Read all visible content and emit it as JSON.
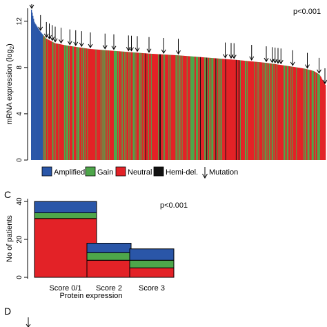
{
  "colors": {
    "amplified": "#2a56a8",
    "gain": "#4ea64a",
    "neutral": "#e32227",
    "hemi_del": "#111111"
  },
  "panels": {
    "c_label": "C",
    "d_label": "D"
  },
  "chart_data": [
    {
      "type": "bar",
      "title": "",
      "ylabel": "mRNA expression (log",
      "ylabel_sub": "2",
      "ylabel_end": ")",
      "ylim": [
        0,
        13
      ],
      "yticks": [
        "0",
        "4",
        "8",
        "12"
      ],
      "annotation": "p<0.001",
      "n_samples": 420,
      "expression_curve": {
        "x_frac": [
          0,
          0.01,
          0.03,
          0.05,
          0.08,
          0.12,
          0.2,
          0.3,
          0.4,
          0.5,
          0.6,
          0.7,
          0.8,
          0.88,
          0.93,
          0.96,
          0.98,
          1.0
        ],
        "y": [
          13,
          11.9,
          11.1,
          10.5,
          10.1,
          9.9,
          9.6,
          9.4,
          9.2,
          9.05,
          8.85,
          8.65,
          8.4,
          8.1,
          7.9,
          7.7,
          7.4,
          6.5
        ]
      },
      "legend": [
        {
          "key": "amplified",
          "label": "Amplified"
        },
        {
          "key": "gain",
          "label": "Gain"
        },
        {
          "key": "neutral",
          "label": "Neutral"
        },
        {
          "key": "hemi_del",
          "label": "Hemi-del."
        },
        {
          "key": "mutation",
          "label": "Mutation"
        }
      ],
      "mutation_x_frac": [
        0.0,
        0.03,
        0.05,
        0.06,
        0.07,
        0.08,
        0.1,
        0.13,
        0.15,
        0.17,
        0.2,
        0.25,
        0.28,
        0.33,
        0.34,
        0.36,
        0.4,
        0.45,
        0.5,
        0.66,
        0.68,
        0.69,
        0.75,
        0.8,
        0.82,
        0.83,
        0.84,
        0.85,
        0.89,
        0.94,
        0.98,
        1.0
      ]
    },
    {
      "type": "bar",
      "stacked": true,
      "title": "",
      "ylabel": "No of patients",
      "xlabel": "Protein expression",
      "ylim": [
        0,
        40
      ],
      "yticks": [
        "0",
        "20",
        "40"
      ],
      "annotation": "p<0.001",
      "categories": [
        "Score 0/1",
        "Score 2",
        "Score 3"
      ],
      "series": [
        {
          "key": "neutral",
          "values": [
            31,
            9,
            5
          ]
        },
        {
          "key": "gain",
          "values": [
            3,
            4,
            4
          ]
        },
        {
          "key": "amplified",
          "values": [
            6,
            5,
            6
          ]
        }
      ]
    }
  ]
}
